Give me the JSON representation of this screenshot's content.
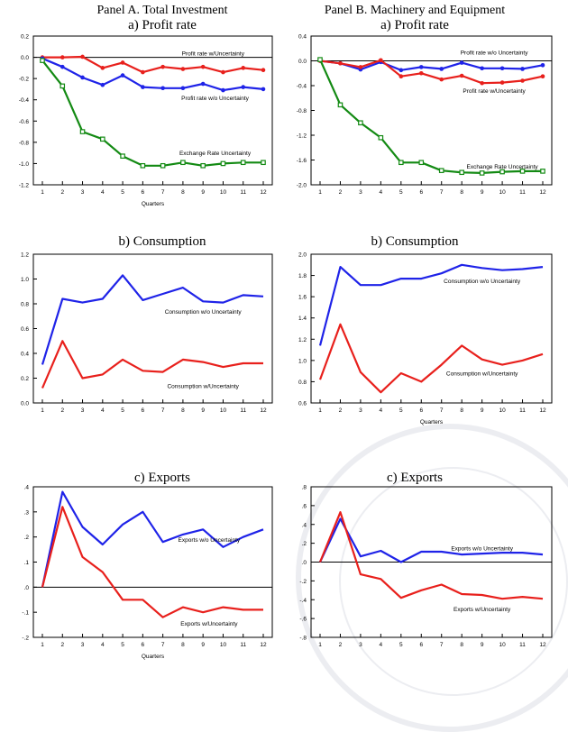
{
  "panels": {
    "left": {
      "title": "Panel A. Total Investment"
    },
    "right": {
      "title": "Panel B. Machinery and Equipment"
    }
  },
  "chart_data": [
    {
      "type": "line",
      "panel": "A",
      "title": "a) Profit rate",
      "xlabel": "Quarters",
      "categories": [
        "1",
        "2",
        "3",
        "4",
        "5",
        "6",
        "7",
        "8",
        "9",
        "10",
        "11",
        "12"
      ],
      "ylim": [
        -1.2,
        0.2
      ],
      "yticks": [
        0.2,
        0.0,
        -0.2,
        -0.4,
        -0.6,
        -0.8,
        -1.0,
        -1.2
      ],
      "ytick_labels": [
        "0.2",
        "0.0",
        "-0.2",
        "-0.4",
        "-0.6",
        "-0.8",
        "-1.0",
        "-1.2"
      ],
      "zero_line": true,
      "series": [
        {
          "name": "Profit rate w/Uncertainty",
          "color": "#e8201c",
          "marker": "dot",
          "values": [
            0.0,
            0.0,
            0.005,
            -0.1,
            -0.05,
            -0.14,
            -0.09,
            -0.11,
            -0.09,
            -0.14,
            -0.1,
            -0.12
          ],
          "label_x": 9.5,
          "label_y": 0.04
        },
        {
          "name": "Profit rate w/o Uncertainty",
          "color": "#1f23e8",
          "marker": "dot",
          "values": [
            -0.01,
            -0.09,
            -0.19,
            -0.26,
            -0.17,
            -0.28,
            -0.29,
            -0.29,
            -0.25,
            -0.31,
            -0.28,
            -0.3
          ],
          "label_x": 9.6,
          "label_y": -0.38
        },
        {
          "name": "Exchange Rate Uncertainty",
          "color": "#138a13",
          "marker": "square",
          "values": [
            -0.03,
            -0.27,
            -0.7,
            -0.77,
            -0.93,
            -1.02,
            -1.02,
            -0.99,
            -1.02,
            -1.0,
            -0.99,
            -0.99
          ],
          "label_x": 9.6,
          "label_y": -0.9
        }
      ]
    },
    {
      "type": "line",
      "panel": "B",
      "title": "a) Profit rate",
      "xlabel": "",
      "categories": [
        "1",
        "2",
        "3",
        "4",
        "5",
        "6",
        "7",
        "8",
        "9",
        "10",
        "11",
        "12"
      ],
      "ylim": [
        -2.0,
        0.4
      ],
      "yticks": [
        0.4,
        0.0,
        -0.4,
        -0.8,
        -1.2,
        -1.6,
        -2.0
      ],
      "ytick_labels": [
        "0.4",
        "0.0",
        "-0.4",
        "-0.8",
        "-1.2",
        "-1.6",
        "-2.0"
      ],
      "zero_line": true,
      "series": [
        {
          "name": "Profit rate w/o Uncertainty",
          "color": "#1f23e8",
          "marker": "dot",
          "values": [
            0.0,
            -0.04,
            -0.14,
            -0.02,
            -0.15,
            -0.1,
            -0.13,
            -0.03,
            -0.12,
            -0.12,
            -0.13,
            -0.07
          ],
          "label_x": 9.6,
          "label_y": 0.14
        },
        {
          "name": "Profit rate w/Uncertainty",
          "color": "#e8201c",
          "marker": "dot",
          "values": [
            0.0,
            -0.04,
            -0.1,
            0.01,
            -0.25,
            -0.2,
            -0.3,
            -0.24,
            -0.36,
            -0.35,
            -0.32,
            -0.25
          ],
          "label_x": 9.6,
          "label_y": -0.48
        },
        {
          "name": "Exchange Rate Uncertainty",
          "color": "#138a13",
          "marker": "square",
          "values": [
            0.02,
            -0.71,
            -1.0,
            -1.24,
            -1.64,
            -1.64,
            -1.77,
            -1.8,
            -1.81,
            -1.79,
            -1.78,
            -1.78
          ],
          "label_x": 10.0,
          "label_y": -1.7
        }
      ]
    },
    {
      "type": "line",
      "panel": "A",
      "title": "b) Consumption",
      "xlabel": "",
      "categories": [
        "1",
        "2",
        "3",
        "4",
        "5",
        "6",
        "7",
        "8",
        "9",
        "10",
        "11",
        "12"
      ],
      "ylim": [
        0.0,
        1.2
      ],
      "yticks": [
        1.2,
        1.0,
        0.8,
        0.6,
        0.4,
        0.2,
        0.0
      ],
      "ytick_labels": [
        "1.2",
        "1.0",
        "0.8",
        "0.6",
        "0.4",
        "0.2",
        "0.0"
      ],
      "zero_line": false,
      "series": [
        {
          "name": "Consumption w/o Uncertainty",
          "color": "#1f23e8",
          "marker": "none",
          "values": [
            0.31,
            0.84,
            0.81,
            0.84,
            1.03,
            0.83,
            0.88,
            0.93,
            0.82,
            0.81,
            0.87,
            0.86
          ],
          "label_x": 9.0,
          "label_y": 0.74
        },
        {
          "name": "Consumption w/Uncertainty",
          "color": "#e8201c",
          "marker": "none",
          "values": [
            0.12,
            0.5,
            0.2,
            0.23,
            0.35,
            0.26,
            0.25,
            0.35,
            0.33,
            0.29,
            0.32,
            0.32
          ],
          "label_x": 9.0,
          "label_y": 0.14
        }
      ]
    },
    {
      "type": "line",
      "panel": "B",
      "title": "b) Consumption",
      "xlabel": "Quarters",
      "categories": [
        "1",
        "2",
        "3",
        "4",
        "5",
        "6",
        "7",
        "8",
        "9",
        "10",
        "11",
        "12"
      ],
      "ylim": [
        0.6,
        2.0
      ],
      "yticks": [
        2.0,
        1.8,
        1.6,
        1.4,
        1.2,
        1.0,
        0.8,
        0.6
      ],
      "ytick_labels": [
        "2.0",
        "1.8",
        "1.6",
        "1.4",
        "1.2",
        "1.0",
        "0.8",
        "0.6"
      ],
      "zero_line": false,
      "series": [
        {
          "name": "Consumption w/o Uncertainty",
          "color": "#1f23e8",
          "marker": "none",
          "values": [
            1.14,
            1.88,
            1.71,
            1.71,
            1.77,
            1.77,
            1.82,
            1.9,
            1.87,
            1.85,
            1.86,
            1.88
          ],
          "label_x": 9.0,
          "label_y": 1.75
        },
        {
          "name": "Consumption w/Uncertainty",
          "color": "#e8201c",
          "marker": "none",
          "values": [
            0.82,
            1.34,
            0.89,
            0.7,
            0.88,
            0.8,
            0.96,
            1.14,
            1.01,
            0.96,
            1.0,
            1.06
          ],
          "label_x": 9.0,
          "label_y": 0.88
        }
      ]
    },
    {
      "type": "line",
      "panel": "A",
      "title": "c) Exports",
      "xlabel": "Quarters",
      "categories": [
        "1",
        "2",
        "3",
        "4",
        "5",
        "6",
        "7",
        "8",
        "9",
        "10",
        "11",
        "12"
      ],
      "ylim": [
        -0.2,
        0.4
      ],
      "yticks": [
        0.4,
        0.3,
        0.2,
        0.1,
        0.0,
        -0.1,
        -0.2
      ],
      "ytick_labels": [
        ".4",
        ".3",
        ".2",
        ".1",
        ".0",
        "-.1",
        "-.2"
      ],
      "zero_line": true,
      "series": [
        {
          "name": "Exports w/o Uncertainty",
          "color": "#1f23e8",
          "marker": "none",
          "values": [
            0.0,
            0.38,
            0.24,
            0.17,
            0.25,
            0.3,
            0.18,
            0.21,
            0.23,
            0.16,
            0.2,
            0.23
          ],
          "label_x": 9.3,
          "label_y": 0.19
        },
        {
          "name": "Exports w/Uncertainty",
          "color": "#e8201c",
          "marker": "none",
          "values": [
            0.0,
            0.32,
            0.12,
            0.06,
            -0.05,
            -0.05,
            -0.12,
            -0.08,
            -0.1,
            -0.08,
            -0.09,
            -0.09
          ],
          "label_x": 9.3,
          "label_y": -0.145
        }
      ]
    },
    {
      "type": "line",
      "panel": "B",
      "title": "c) Exports",
      "xlabel": "",
      "categories": [
        "1",
        "2",
        "3",
        "4",
        "5",
        "6",
        "7",
        "8",
        "9",
        "10",
        "11",
        "12"
      ],
      "ylim": [
        -0.8,
        0.8
      ],
      "yticks": [
        0.8,
        0.6,
        0.4,
        0.2,
        0.0,
        -0.2,
        -0.4,
        -0.6,
        -0.8
      ],
      "ytick_labels": [
        ".8",
        ".6",
        ".4",
        ".2",
        ".0",
        "-.2",
        "-.4",
        "-.6",
        "-.8"
      ],
      "zero_line": true,
      "series": [
        {
          "name": "Exports w/o Uncertainty",
          "color": "#1f23e8",
          "marker": "none",
          "values": [
            0.0,
            0.46,
            0.06,
            0.12,
            0.0,
            0.11,
            0.11,
            0.08,
            0.09,
            0.1,
            0.1,
            0.08
          ],
          "label_x": 9.0,
          "label_y": 0.15
        },
        {
          "name": "Exports w/Uncertainty",
          "color": "#e8201c",
          "marker": "none",
          "values": [
            0.0,
            0.53,
            -0.13,
            -0.18,
            -0.38,
            -0.3,
            -0.24,
            -0.34,
            -0.35,
            -0.39,
            -0.37,
            -0.39
          ],
          "label_x": 9.0,
          "label_y": -0.5
        }
      ]
    }
  ]
}
